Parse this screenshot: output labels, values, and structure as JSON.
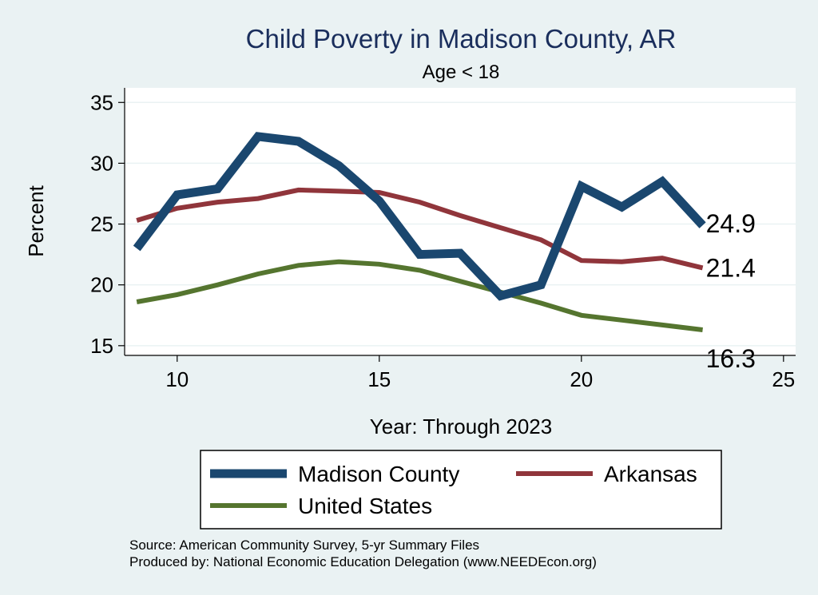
{
  "chart_data": {
    "type": "line",
    "title": "Child Poverty in Madison County, AR",
    "subtitle": "Age < 18",
    "xlabel": "Year: Through 2023",
    "ylabel": "Percent",
    "xlim": [
      8.7,
      25.3
    ],
    "ylim": [
      14.2,
      36.2
    ],
    "xticks": [
      10,
      15,
      20,
      25
    ],
    "yticks": [
      15,
      20,
      25,
      30,
      35
    ],
    "x": [
      9,
      10,
      11,
      12,
      13,
      14,
      15,
      16,
      17,
      18,
      19,
      20,
      21,
      22,
      23
    ],
    "series": [
      {
        "name": "Madison County",
        "color": "#1a476f",
        "values": [
          23.0,
          27.4,
          27.9,
          32.2,
          31.8,
          29.8,
          26.9,
          22.5,
          22.6,
          19.1,
          20.0,
          28.1,
          26.4,
          28.5,
          24.9
        ],
        "end_label": "24.9"
      },
      {
        "name": "Arkansas",
        "color": "#90353b",
        "values": [
          25.3,
          26.3,
          26.8,
          27.1,
          27.8,
          27.7,
          27.6,
          26.8,
          25.7,
          24.7,
          23.7,
          22.0,
          21.9,
          22.2,
          21.4
        ],
        "end_label": "21.4"
      },
      {
        "name": "United States",
        "color": "#55752f",
        "values": [
          18.6,
          19.2,
          20.0,
          20.9,
          21.6,
          21.9,
          21.7,
          21.2,
          20.3,
          19.4,
          18.5,
          17.5,
          17.1,
          16.7,
          16.3
        ],
        "end_label": "16.3"
      }
    ],
    "legend": [
      "Madison County",
      "Arkansas",
      "United States"
    ],
    "notes": [
      "Source: American Community Survey, 5-yr Summary Files",
      "Produced by: National Economic Education Delegation (www.NEEDEcon.org)"
    ],
    "colors": {
      "background": "#eaf2f3",
      "plot_background": "#ffffff",
      "grid": "#eaf2f3",
      "title": "#1a2e5c"
    }
  }
}
